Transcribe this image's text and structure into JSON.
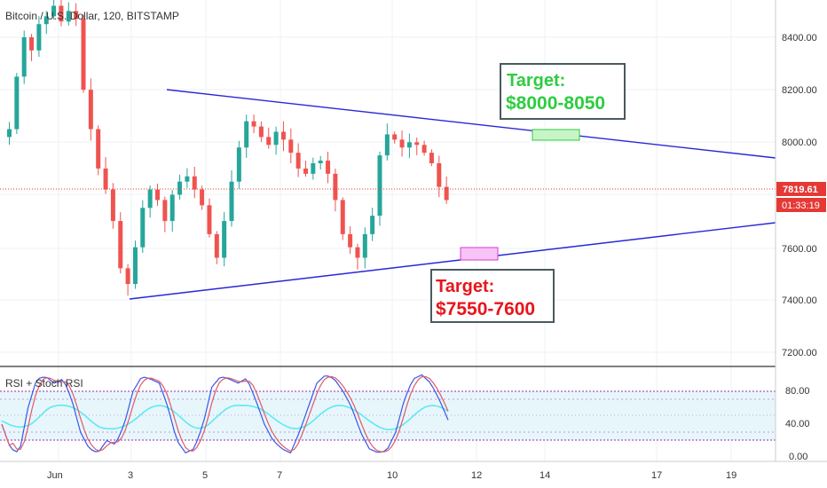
{
  "header": {
    "symbol_title": "Bitcoin / U.S. Dollar, 120, BITSTAMP"
  },
  "indicator": {
    "label": "RSI + Stoch RSI",
    "y_ticks": [
      "80.00",
      "40.00",
      "0.00"
    ]
  },
  "price_axis": {
    "ticks": [
      "8400.00",
      "8200.00",
      "8000.00",
      "7600.00",
      "7400.00",
      "7200.00"
    ],
    "current_price": "7819.61",
    "countdown": "01:33:19"
  },
  "time_axis": {
    "ticks": [
      "Jun",
      "3",
      "5",
      "7",
      "10",
      "12",
      "14",
      "17",
      "19"
    ]
  },
  "annotations": {
    "upper_target": {
      "line1": "Target:",
      "line2": "$8000-8050",
      "color": "#2ecc40"
    },
    "lower_target": {
      "line1": "Target:",
      "line2": "$7550-7600",
      "color": "#e8151b"
    }
  },
  "colors": {
    "up_candle": "#26a69a",
    "down_candle": "#ef5350",
    "trendline": "#2727d6",
    "rsi": "#5ee9f2",
    "stoch_k": "#3a57e8",
    "stoch_d": "#e05a6a",
    "band_fill": "#e7f6fb",
    "band_border": "#9c27b0"
  },
  "chart_data": {
    "type": "candlestick",
    "y_range": [
      7180,
      8490
    ],
    "x_axis": "time (2h bars), Jun 1 – Jun 20",
    "current_price": 7819.61,
    "upper_trendline": [
      {
        "x": "Jun 4",
        "y": 8200
      },
      {
        "x": "Jun 20",
        "y": 7940
      }
    ],
    "lower_trendline": [
      {
        "x": "Jun 3",
        "y": 7400
      },
      {
        "x": "Jun 20",
        "y": 7700
      }
    ],
    "target_zones": [
      {
        "low": 8000,
        "high": 8050
      },
      {
        "low": 7550,
        "high": 7600
      }
    ],
    "indicator": {
      "name": "RSI + Stoch RSI",
      "y_range": [
        0,
        100
      ],
      "overbought": 80,
      "oversold": 20,
      "bands": [
        [
          20,
          30
        ],
        [
          70,
          80
        ]
      ]
    },
    "candle_closes": [
      8050,
      8250,
      8400,
      8350,
      8450,
      8480,
      8520,
      8460,
      8500,
      8470,
      8200,
      8050,
      7900,
      7820,
      7700,
      7520,
      7460,
      7600,
      7750,
      7820,
      7780,
      7700,
      7800,
      7850,
      7870,
      7820,
      7760,
      7650,
      7560,
      7700,
      7850,
      7980,
      8080,
      8060,
      8020,
      7990,
      8040,
      8010,
      7960,
      7900,
      7880,
      7920,
      7930,
      7880,
      7780,
      7650,
      7600,
      7560,
      7650,
      7720,
      7950,
      8030,
      8010,
      7980,
      8000,
      7990,
      7960,
      7920,
      7830,
      7780
    ]
  }
}
